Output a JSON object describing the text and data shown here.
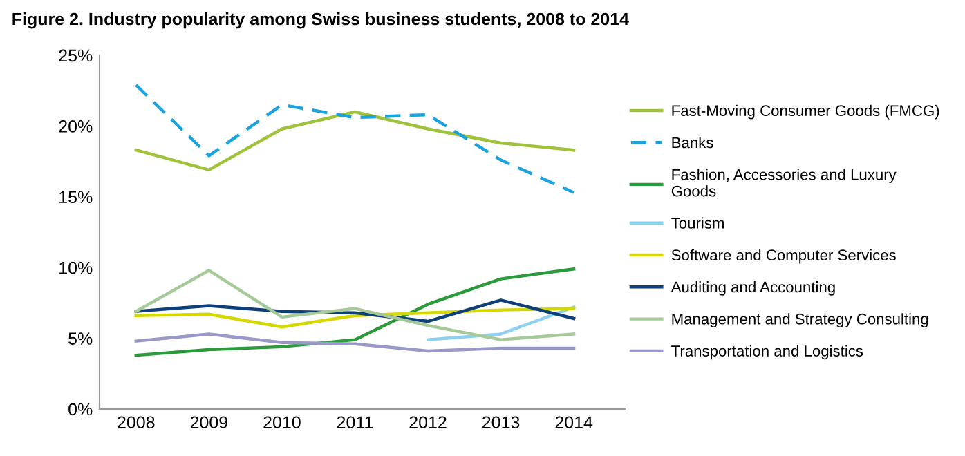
{
  "chart_data": {
    "type": "line",
    "title": "Figure 2. Industry popularity among Swiss business students, 2008 to 2014",
    "categories": [
      "2008",
      "2009",
      "2010",
      "2011",
      "2012",
      "2013",
      "2014"
    ],
    "series": [
      {
        "name": "Fast-Moving Consumer Goods (FMCG)",
        "color": "#9fc23a",
        "values": [
          18.3,
          16.9,
          19.8,
          21.0,
          19.8,
          18.8,
          18.3
        ]
      },
      {
        "name": "Banks",
        "color": "#1aa3dc",
        "line_style": "dashed",
        "values": [
          22.9,
          17.9,
          21.5,
          20.6,
          20.8,
          17.6,
          15.3
        ]
      },
      {
        "name": "Fashion, Accessories and Luxury\nGoods",
        "color": "#2a9a3a",
        "values": [
          3.8,
          4.2,
          4.4,
          4.9,
          7.4,
          9.2,
          9.9
        ]
      },
      {
        "name": "Tourism",
        "color": "#8fd0f0",
        "values": [
          null,
          null,
          null,
          null,
          4.9,
          5.3,
          7.2
        ]
      },
      {
        "name": "Software and Computer Services",
        "color": "#d4d800",
        "values": [
          6.6,
          6.7,
          5.8,
          6.6,
          6.8,
          7.0,
          7.1
        ]
      },
      {
        "name": "Auditing and Accounting",
        "color": "#0d3f7a",
        "values": [
          6.9,
          7.3,
          6.9,
          6.8,
          6.2,
          7.7,
          6.4
        ]
      },
      {
        "name": "Management and Strategy Consulting",
        "color": "#a6c99a",
        "values": [
          6.9,
          9.8,
          6.5,
          7.1,
          5.9,
          4.9,
          5.3
        ]
      },
      {
        "name": "Transportation and Logistics",
        "color": "#9a98c6",
        "values": [
          4.8,
          5.3,
          4.7,
          4.6,
          4.1,
          4.3,
          4.3
        ]
      }
    ],
    "ylim": [
      0,
      25
    ],
    "yticks": [
      {
        "value": 0,
        "label": "0%"
      },
      {
        "value": 5,
        "label": "5%"
      },
      {
        "value": 10,
        "label": "10%"
      },
      {
        "value": 15,
        "label": "15%"
      },
      {
        "value": 20,
        "label": "20%"
      },
      {
        "value": 25,
        "label": "25%"
      }
    ],
    "grid": false,
    "legend": "right",
    "line_style": "solid",
    "marker": "none"
  }
}
